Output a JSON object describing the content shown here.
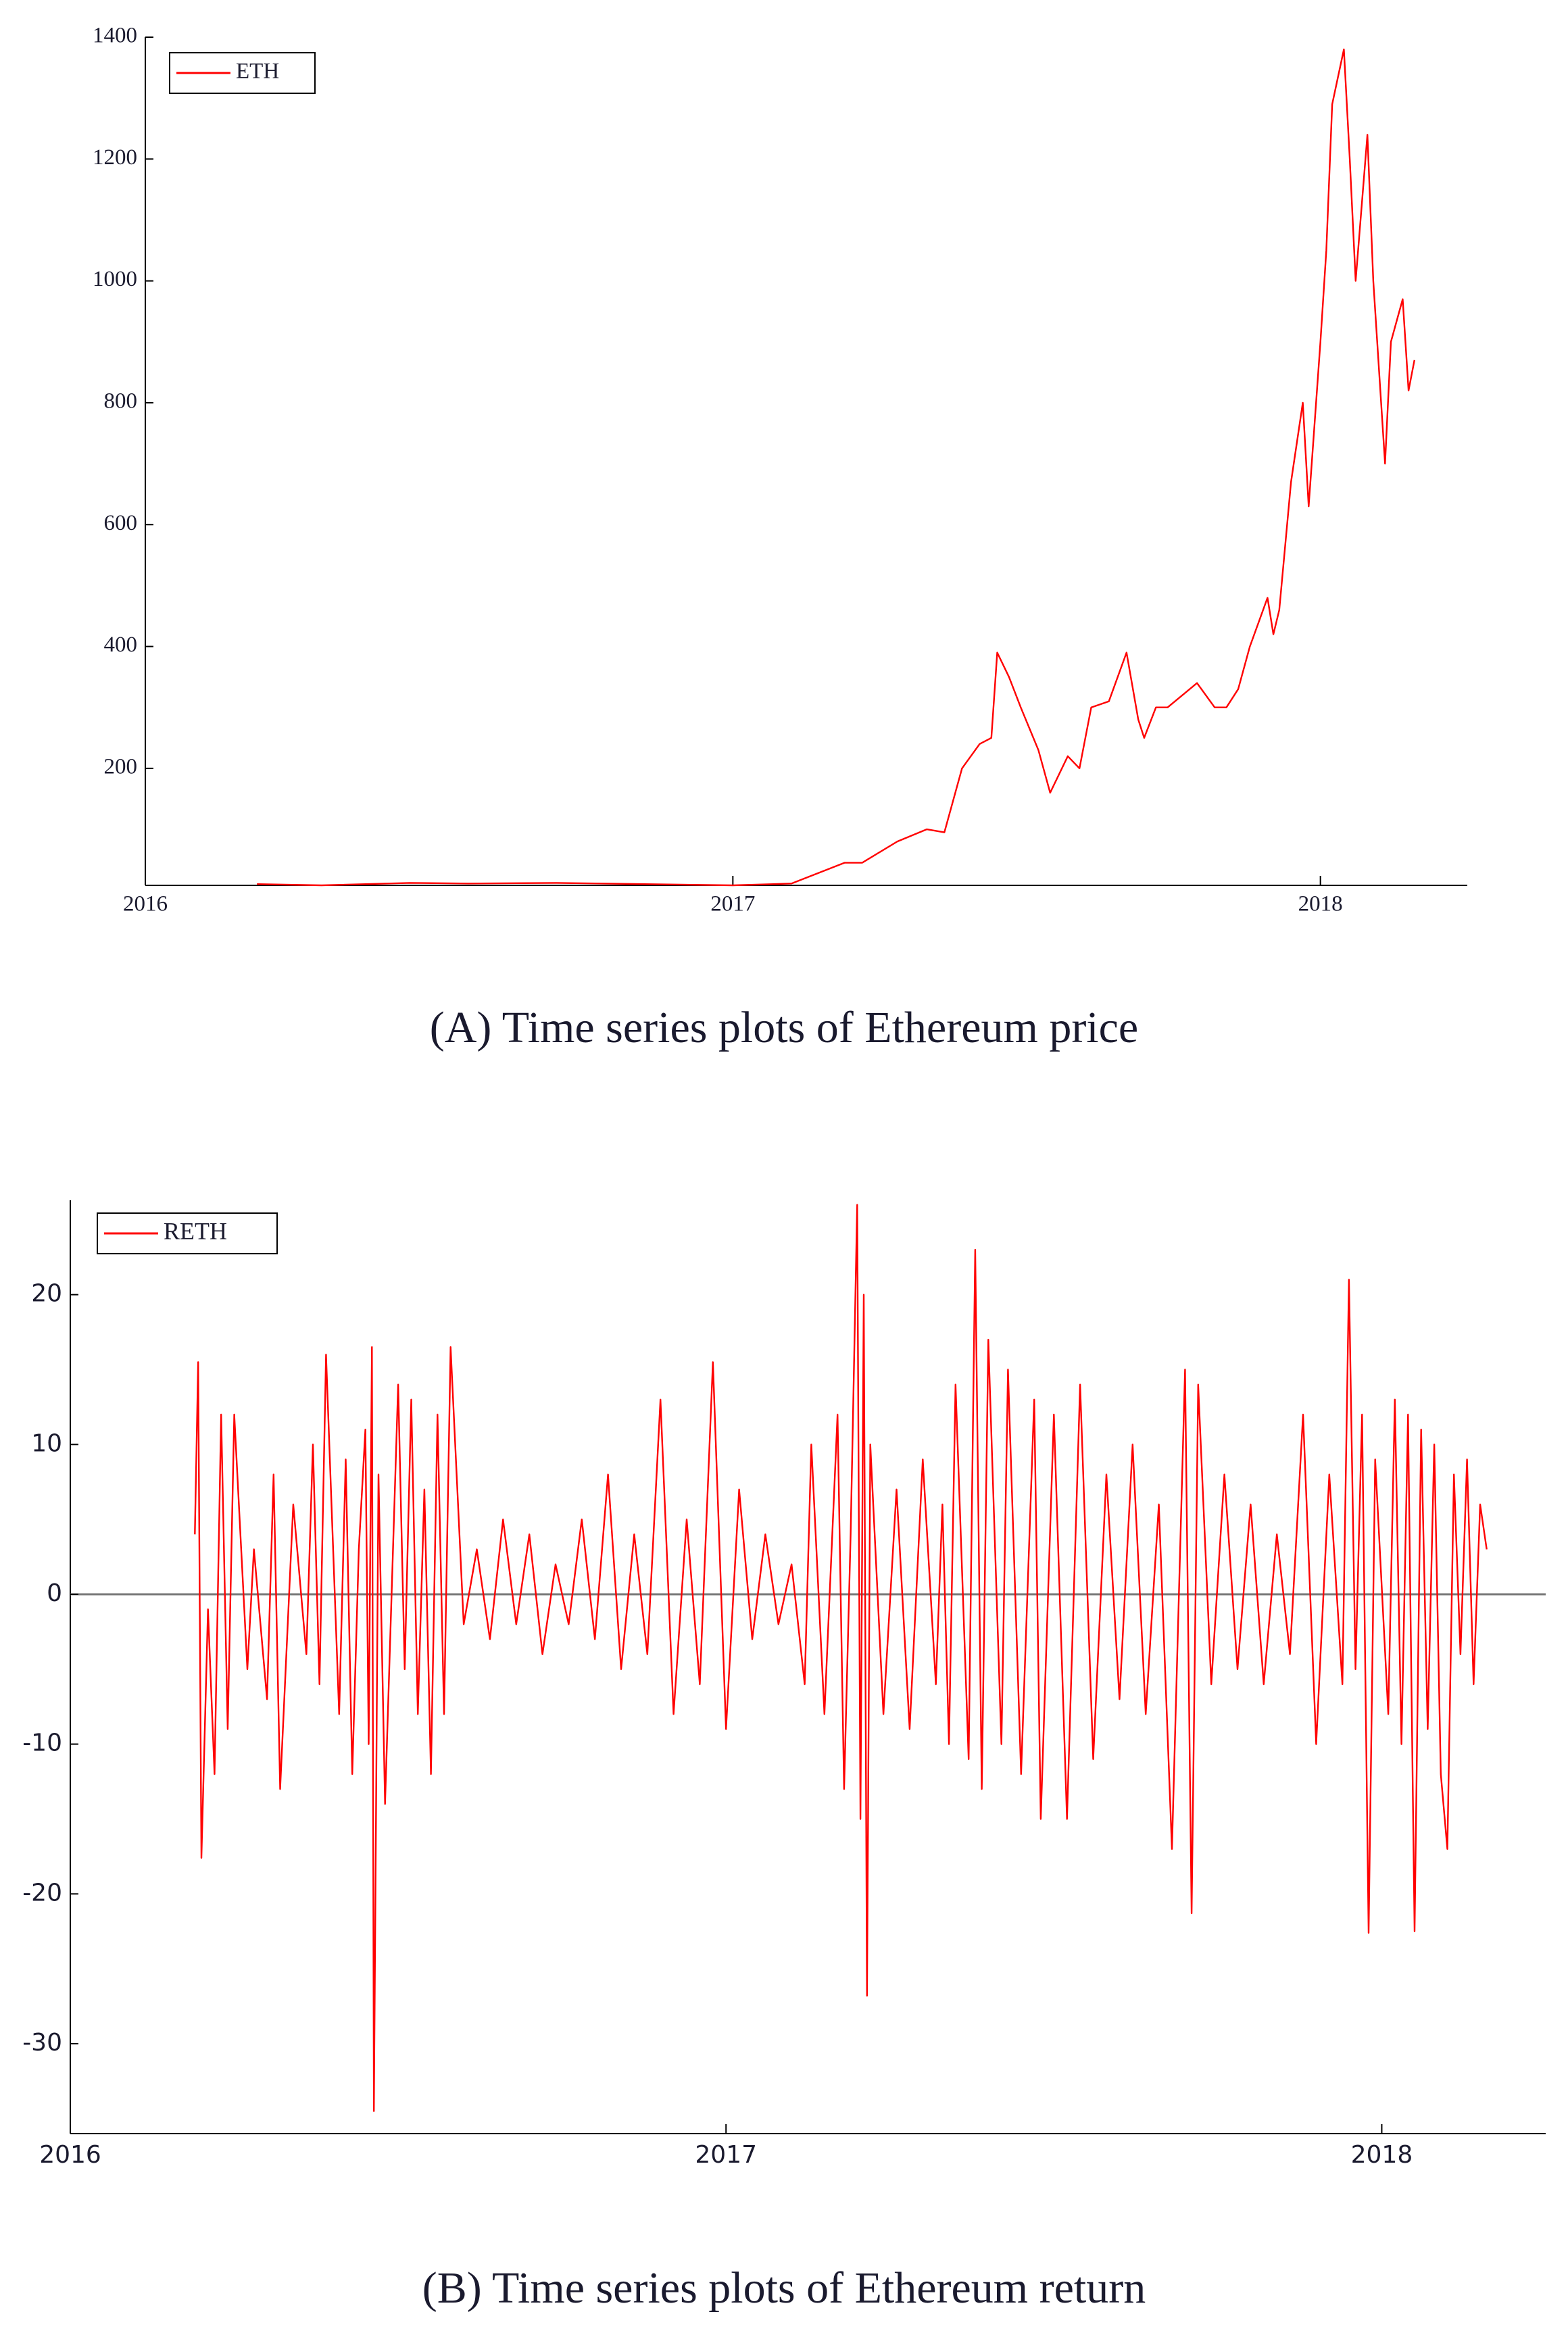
{
  "chart_data": [
    {
      "type": "line",
      "caption": "(A) Time series plots of Ethereum price",
      "legend": "upper left",
      "font": "serif",
      "xlim": [
        2016,
        2018.25
      ],
      "xticks": [
        2016,
        2017,
        2018
      ],
      "ylim": [
        8,
        1400
      ],
      "yticks": [
        200,
        400,
        600,
        800,
        1000,
        1200,
        1400
      ],
      "series": [
        {
          "name": "ETH",
          "color": "#ff0000",
          "x": [
            2016.19,
            2016.3,
            2016.45,
            2016.55,
            2016.7,
            2016.85,
            2017.0,
            2017.1,
            2017.19,
            2017.22,
            2017.28,
            2017.33,
            2017.36,
            2017.39,
            2017.42,
            2017.44,
            2017.45,
            2017.47,
            2017.49,
            2017.52,
            2017.54,
            2017.57,
            2017.59,
            2017.61,
            2017.64,
            2017.67,
            2017.69,
            2017.7,
            2017.72,
            2017.74,
            2017.79,
            2017.82,
            2017.84,
            2017.86,
            2017.88,
            2017.91,
            2017.92,
            2017.93,
            2017.95,
            2017.97,
            2017.98,
            2018.0,
            2018.01,
            2018.02,
            2018.04,
            2018.05,
            2018.06,
            2018.08,
            2018.09,
            2018.1,
            2018.11,
            2018.12,
            2018.14,
            2018.15,
            2018.16
          ],
          "values": [
            10,
            8,
            12,
            11,
            12,
            10,
            8,
            11,
            45,
            45,
            80,
            100,
            95,
            200,
            240,
            250,
            390,
            350,
            300,
            230,
            160,
            220,
            200,
            300,
            310,
            390,
            280,
            250,
            300,
            300,
            340,
            300,
            300,
            330,
            400,
            480,
            420,
            460,
            670,
            800,
            630,
            900,
            1050,
            1290,
            1380,
            1200,
            1000,
            1240,
            1000,
            850,
            700,
            900,
            970,
            820,
            870
          ]
        }
      ]
    },
    {
      "type": "line",
      "caption": "(B) Time series plots of Ethereum return",
      "legend": "upper left",
      "font": "sans",
      "zero_line": true,
      "xlim": [
        2016,
        2018.25
      ],
      "xticks": [
        2016,
        2017,
        2018
      ],
      "ylim": [
        -36,
        26.3
      ],
      "yticks": [
        -30,
        -20,
        -10,
        0,
        10,
        20
      ],
      "series": [
        {
          "name": "RETH",
          "color": "#ff0000",
          "x": [
            2016.19,
            2016.195,
            2016.2,
            2016.21,
            2016.22,
            2016.23,
            2016.24,
            2016.25,
            2016.27,
            2016.28,
            2016.3,
            2016.31,
            2016.32,
            2016.34,
            2016.36,
            2016.37,
            2016.38,
            2016.39,
            2016.41,
            2016.42,
            2016.43,
            2016.44,
            2016.45,
            2016.455,
            2016.46,
            2016.463,
            2016.47,
            2016.48,
            2016.5,
            2016.51,
            2016.52,
            2016.53,
            2016.54,
            2016.55,
            2016.56,
            2016.57,
            2016.58,
            2016.6,
            2016.62,
            2016.64,
            2016.66,
            2016.68,
            2016.7,
            2016.72,
            2016.74,
            2016.76,
            2016.78,
            2016.8,
            2016.82,
            2016.84,
            2016.86,
            2016.88,
            2016.9,
            2016.92,
            2016.94,
            2016.96,
            2016.98,
            2017.0,
            2017.02,
            2017.04,
            2017.06,
            2017.08,
            2017.1,
            2017.12,
            2017.13,
            2017.15,
            2017.17,
            2017.18,
            2017.19,
            2017.2,
            2017.205,
            2017.21,
            2017.215,
            2017.22,
            2017.24,
            2017.26,
            2017.28,
            2017.3,
            2017.32,
            2017.33,
            2017.34,
            2017.35,
            2017.37,
            2017.38,
            2017.39,
            2017.4,
            2017.42,
            2017.43,
            2017.45,
            2017.47,
            2017.48,
            2017.5,
            2017.52,
            2017.54,
            2017.56,
            2017.58,
            2017.6,
            2017.62,
            2017.64,
            2017.66,
            2017.68,
            2017.7,
            2017.71,
            2017.72,
            2017.74,
            2017.76,
            2017.78,
            2017.8,
            2017.82,
            2017.84,
            2017.86,
            2017.88,
            2017.9,
            2017.92,
            2017.94,
            2017.95,
            2017.96,
            2017.97,
            2017.98,
            2017.99,
            2018.01,
            2018.02,
            2018.03,
            2018.04,
            2018.05,
            2018.06,
            2018.07,
            2018.08,
            2018.09,
            2018.1,
            2018.11,
            2018.12,
            2018.13,
            2018.14,
            2018.15,
            2018.16
          ],
          "values": [
            4,
            15.5,
            -17.6,
            -1,
            -12,
            12,
            -9,
            12,
            -5,
            3,
            -7,
            8,
            -13,
            6,
            -4,
            10,
            -6,
            16,
            -8,
            9,
            -12,
            3,
            11,
            -10,
            16.5,
            -34.5,
            8,
            -14,
            14,
            -5,
            13,
            -8,
            7,
            -12,
            12,
            -8,
            16.5,
            -2,
            3,
            -3,
            5,
            -2,
            4,
            -4,
            2,
            -2,
            5,
            -3,
            8,
            -5,
            4,
            -4,
            13,
            -8,
            5,
            -6,
            15.5,
            -9,
            7,
            -3,
            4,
            -2,
            2,
            -6,
            10,
            -8,
            12,
            -13,
            4,
            26,
            -15,
            20,
            -26.8,
            10,
            -8,
            7,
            -9,
            9,
            -6,
            6,
            -10,
            14,
            -11,
            23,
            -13,
            17,
            -10,
            15,
            -12,
            13,
            -15,
            12,
            -15,
            14,
            -11,
            8,
            -7,
            10,
            -8,
            6,
            -17,
            15,
            -21.3,
            14,
            -6,
            8,
            -5,
            6,
            -6,
            4,
            -4,
            12,
            -10,
            8,
            -6,
            21,
            -5,
            12,
            -22.6,
            9,
            -8,
            13,
            -10,
            12,
            -22.5,
            11,
            -9,
            10,
            -12,
            -17,
            8,
            -4,
            9,
            -6,
            6,
            3
          ]
        }
      ]
    }
  ]
}
